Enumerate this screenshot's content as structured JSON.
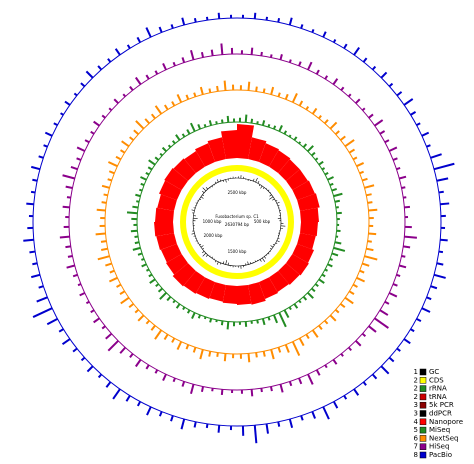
{
  "chart_data": {
    "type": "circular-coverage",
    "title": "Fusobacterium sp. C1",
    "subtitle": "2630794 bp",
    "scale_labels": [
      "2500 kbp",
      "500 kbp",
      "1000 kbp",
      "1500 kbp",
      "2000 kbp"
    ],
    "series": [
      {
        "track": "1",
        "name": "GC",
        "color": "#000000",
        "style": "wiggle",
        "values": [
          2,
          -1,
          3,
          -2,
          1,
          -3,
          2,
          1,
          -2,
          3,
          -1,
          2,
          -2,
          1,
          3,
          -1,
          -2,
          2,
          1,
          -3,
          2,
          -1,
          3,
          -2,
          1,
          2,
          -1,
          -3,
          2,
          1,
          -2,
          3,
          -1,
          2,
          -2,
          1
        ]
      },
      {
        "track": "2",
        "name": "CDS",
        "color": "#ffff00",
        "style": "ring"
      },
      {
        "track": "2",
        "name": "rRNA",
        "color": "#228b22",
        "style": "none"
      },
      {
        "track": "2",
        "name": "tRNA",
        "color": "#cc0000",
        "style": "none"
      },
      {
        "track": "3",
        "name": "5k PCR",
        "color": "#8b0000",
        "style": "none"
      },
      {
        "track": "3",
        "name": "ddPCR",
        "color": "#000000",
        "style": "none"
      },
      {
        "track": "4",
        "name": "Nanopore",
        "color": "#ff0000",
        "style": "fill",
        "values": [
          34,
          22,
          20,
          19,
          18,
          18,
          19,
          20,
          18,
          17,
          16,
          18,
          19,
          18,
          17,
          18,
          20,
          19,
          18,
          17,
          18,
          19,
          20,
          18,
          17,
          18,
          19,
          18,
          17,
          19,
          20,
          19,
          18,
          20,
          22,
          28
        ]
      },
      {
        "track": "5",
        "name": "MiSeq",
        "color": "#228b22",
        "style": "spikes",
        "values": [
          6,
          4,
          5,
          3,
          6,
          4,
          5,
          7,
          4,
          3,
          9,
          4,
          5,
          6,
          4,
          12,
          5,
          4,
          6,
          3,
          5,
          4,
          7,
          5,
          4,
          6,
          5,
          8,
          4,
          5,
          6,
          4,
          5,
          7,
          4,
          5
        ]
      },
      {
        "track": "6",
        "name": "NextSeq",
        "color": "#ff8c00",
        "style": "spikes",
        "values": [
          8,
          7,
          9,
          6,
          8,
          10,
          7,
          9,
          8,
          7,
          12,
          8,
          9,
          7,
          8,
          14,
          9,
          8,
          7,
          9,
          8,
          10,
          7,
          9,
          8,
          11,
          9,
          8,
          7,
          9,
          8,
          10,
          9,
          8,
          7,
          9
        ]
      },
      {
        "track": "7",
        "name": "HiSeq",
        "color": "#8b008b",
        "style": "spikes",
        "values": [
          5,
          4,
          6,
          5,
          4,
          7,
          6,
          5,
          4,
          9,
          5,
          6,
          12,
          5,
          4,
          8,
          6,
          5,
          4,
          7,
          5,
          6,
          10,
          5,
          4,
          6,
          7,
          5,
          9,
          6,
          5,
          4,
          6,
          5,
          7,
          8
        ]
      },
      {
        "track": "8",
        "name": "PacBio",
        "color": "#0000cd",
        "style": "spikes",
        "values": [
          4,
          5,
          4,
          6,
          5,
          7,
          5,
          14,
          6,
          5,
          8,
          6,
          5,
          7,
          5,
          9,
          6,
          12,
          5,
          7,
          6,
          8,
          5,
          6,
          14,
          6,
          7,
          5,
          6,
          5,
          4,
          6,
          5,
          7,
          5,
          4
        ]
      }
    ]
  }
}
